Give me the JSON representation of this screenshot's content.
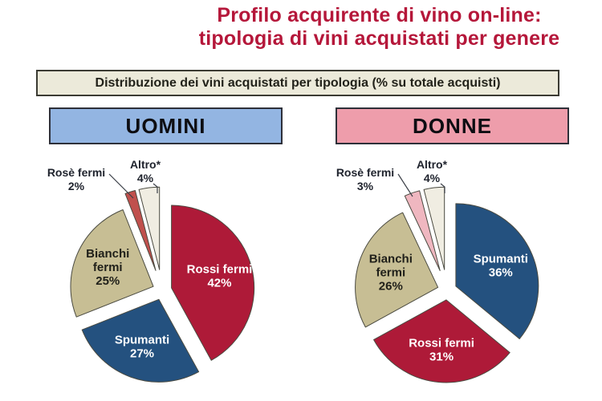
{
  "title": {
    "line1": "Profilo acquirente di vino on-line:",
    "line2": "tipologia di vini acquistati per genere"
  },
  "subtitle": "Distribuzione dei vini acquistati per tipologia (% su totale acquisti)",
  "colors": {
    "title_text": "#B5173A",
    "subtitle_bg": "#ECEADA",
    "subtitle_border": "#3B3B33",
    "uomini_header_bg": "#93B5E2",
    "donne_header_bg": "#EE9DAB",
    "outside_label_text": "#20242E",
    "slice_stroke": "#4A4A40",
    "leader_line": "#3A3E46"
  },
  "chart_data": [
    {
      "type": "pie",
      "id": "uomini",
      "group_label": "UOMINI",
      "units": "% su totale acquisti",
      "slices": [
        {
          "label": "Rossi fermi",
          "value": 42,
          "pct_label": "42%",
          "color": "#AE1A38",
          "text_color": "#FFFFFF"
        },
        {
          "label": "Spumanti",
          "value": 27,
          "pct_label": "27%",
          "color": "#24517F",
          "text_color": "#FFFFFF"
        },
        {
          "label": "Bianchi fermi",
          "value": 25,
          "pct_label": "25%",
          "color": "#C7BE94",
          "text_color": "#20201A"
        },
        {
          "label": "Rosè fermi",
          "value": 2,
          "pct_label": "2%",
          "color": "#C0504D",
          "text_color": "#20242E"
        },
        {
          "label": "Altro*",
          "value": 4,
          "pct_label": "4%",
          "color": "#F0EDE2",
          "text_color": "#20242E"
        }
      ]
    },
    {
      "type": "pie",
      "id": "donne",
      "group_label": "DONNE",
      "units": "% su totale acquisti",
      "slices": [
        {
          "label": "Spumanti",
          "value": 36,
          "pct_label": "36%",
          "color": "#24517F",
          "text_color": "#FFFFFF"
        },
        {
          "label": "Rossi fermi",
          "value": 31,
          "pct_label": "31%",
          "color": "#AE1A38",
          "text_color": "#FFFFFF"
        },
        {
          "label": "Bianchi fermi",
          "value": 26,
          "pct_label": "26%",
          "color": "#C7BE94",
          "text_color": "#20201A"
        },
        {
          "label": "Rosè fermi",
          "value": 3,
          "pct_label": "3%",
          "color": "#EFB7C0",
          "text_color": "#20242E"
        },
        {
          "label": "Altro*",
          "value": 4,
          "pct_label": "4%",
          "color": "#F0EDE2",
          "text_color": "#20242E"
        }
      ]
    }
  ]
}
